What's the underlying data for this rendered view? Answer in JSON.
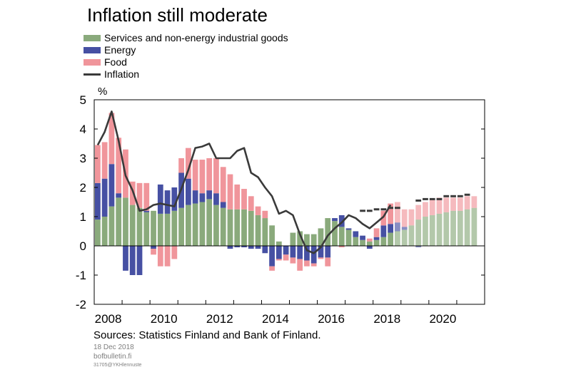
{
  "title": "Inflation still moderate",
  "unit_label": "%",
  "legend": [
    {
      "key": "services",
      "label": "Services and non-energy industrial goods",
      "color": "#8aaa7c",
      "kind": "bar"
    },
    {
      "key": "energy",
      "label": "Energy",
      "color": "#4650a3",
      "kind": "bar"
    },
    {
      "key": "food",
      "label": "Food",
      "color": "#f0959b",
      "kind": "bar"
    },
    {
      "key": "inflation",
      "label": "Inflation",
      "color": "#3a3a3a",
      "kind": "line"
    }
  ],
  "footer": {
    "source": "Sources: Statistics Finland and Bank of Finland.",
    "date": "18 Dec 2018",
    "site": "bofbulletin.fi",
    "code": "31705@YKHlennuste"
  },
  "chart_data": {
    "type": "bar",
    "stacked": true,
    "frequency": "quarterly",
    "start": "2008Q1",
    "forecast_start": "2018Q4",
    "x_tick_labels": [
      "2008",
      "2010",
      "2012",
      "2014",
      "2016",
      "2018",
      "2020"
    ],
    "y_tick_labels": [
      "5",
      "4",
      "3",
      "2",
      "1",
      "0",
      "-1",
      "-2"
    ],
    "ylim": [
      -2,
      5
    ],
    "grid": false,
    "series": [
      {
        "name": "Services and non-energy industrial goods",
        "values": [
          0.9,
          1.0,
          1.35,
          1.65,
          1.65,
          1.4,
          1.3,
          1.15,
          1.2,
          1.1,
          1.1,
          1.2,
          1.3,
          1.4,
          1.45,
          1.5,
          1.6,
          1.4,
          1.3,
          1.25,
          1.25,
          1.25,
          1.2,
          1.05,
          0.95,
          0.7,
          0.15,
          0.0,
          0.45,
          0.5,
          0.4,
          0.4,
          0.6,
          0.95,
          0.85,
          0.65,
          0.55,
          0.3,
          0.2,
          0.15,
          0.2,
          0.3,
          0.45,
          0.5,
          0.55,
          0.7,
          0.9,
          1.0,
          1.05,
          1.1,
          1.15,
          1.2,
          1.2,
          1.25,
          1.3
        ]
      },
      {
        "name": "Energy",
        "values": [
          1.25,
          1.3,
          1.45,
          0.15,
          -0.85,
          -1.0,
          -1.0,
          0.05,
          -0.1,
          1.0,
          0.8,
          0.8,
          1.2,
          0.9,
          0.45,
          0.3,
          0.3,
          0.4,
          0.2,
          -0.1,
          -0.05,
          -0.05,
          -0.1,
          -0.1,
          -0.25,
          -0.7,
          -0.45,
          -0.3,
          -0.4,
          -0.45,
          -0.5,
          -0.6,
          -0.4,
          -0.4,
          0.1,
          0.4,
          0.05,
          0.2,
          0.15,
          -0.1,
          0.1,
          0.4,
          0.3,
          0.3,
          0.1,
          0.0,
          -0.05,
          0.0,
          0.0,
          0.0,
          0.0,
          0.0,
          0.0,
          0.0,
          0.0
        ]
      },
      {
        "name": "Food",
        "values": [
          1.3,
          1.25,
          1.75,
          1.9,
          1.65,
          0.8,
          0.85,
          0.95,
          -0.2,
          -0.7,
          -0.7,
          -0.45,
          0.5,
          1.05,
          1.05,
          1.15,
          1.1,
          1.2,
          1.2,
          1.2,
          0.85,
          0.7,
          0.5,
          0.3,
          0.25,
          -0.15,
          -0.05,
          -0.2,
          -0.2,
          -0.4,
          -0.2,
          -0.1,
          -0.05,
          -0.3,
          0.0,
          -0.05,
          0.0,
          0.0,
          0.0,
          0.1,
          0.3,
          0.5,
          0.7,
          0.7,
          0.6,
          0.55,
          0.5,
          0.5,
          0.55,
          0.55,
          0.5,
          0.45,
          0.45,
          0.45,
          0.4
        ]
      },
      {
        "name": "Inflation",
        "type": "line",
        "values": [
          3.45,
          3.9,
          4.6,
          3.6,
          2.4,
          1.9,
          1.2,
          1.25,
          1.4,
          1.45,
          1.4,
          1.35,
          1.95,
          2.6,
          3.35,
          3.4,
          3.5,
          3.0,
          3.0,
          3.0,
          3.25,
          3.35,
          2.5,
          2.35,
          2.0,
          1.7,
          1.1,
          1.2,
          1.05,
          0.4,
          -0.15,
          -0.25,
          -0.05,
          0.35,
          0.6,
          0.8,
          1.05,
          0.95,
          0.75,
          0.6,
          0.8,
          1.0,
          1.4
        ]
      },
      {
        "name": "Inflation forecast",
        "type": "line",
        "dashed": true,
        "start": "2017Q3",
        "values": [
          1.2,
          1.2,
          1.25,
          1.25,
          1.3,
          1.3,
          null,
          null,
          1.55,
          1.6,
          1.6,
          1.6,
          1.7,
          1.7,
          1.7,
          1.75
        ]
      }
    ]
  }
}
